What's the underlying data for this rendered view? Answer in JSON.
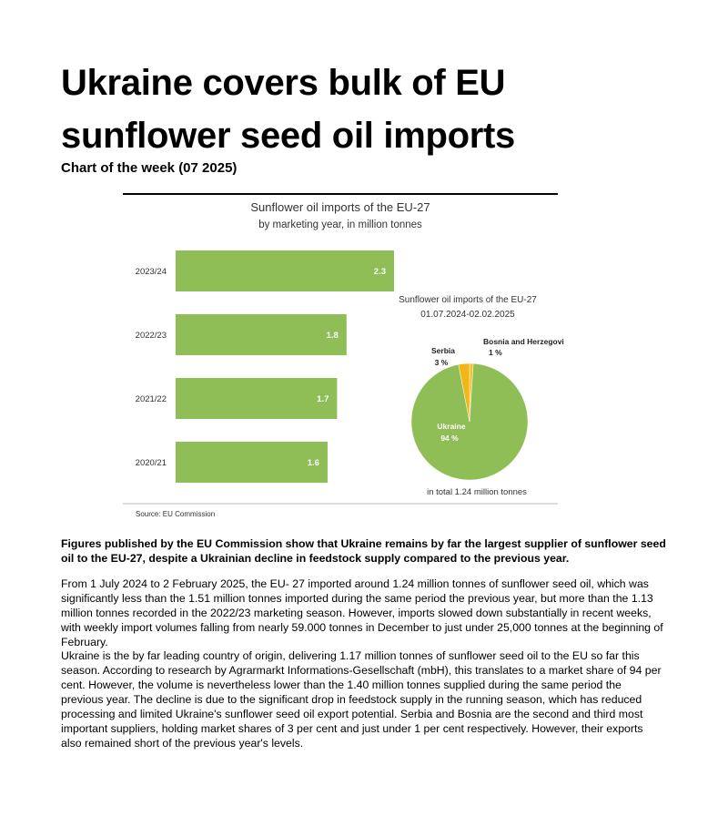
{
  "header": {
    "title": "Ukraine covers bulk of EU sunflower seed oil imports",
    "subtitle": "Chart of the week (07 2025)"
  },
  "chart": {
    "bar_title": "Sunflower oil imports of the EU-27",
    "bar_subtitle": "by marketing year, in million tonnes",
    "bars": {
      "type": "bar",
      "categories": [
        "2023/24",
        "2022/23",
        "2021/22",
        "2020/21"
      ],
      "values": [
        2.3,
        1.8,
        1.7,
        1.6
      ],
      "color": "#8fbe56"
    },
    "pie_title": "Sunflower oil imports of the EU-27",
    "pie_subtitle": "01.07.2024-02.02.2025",
    "pie": {
      "type": "pie",
      "categories": [
        "Bosnia and Herzegovina",
        "Ukraine",
        "Serbia"
      ],
      "values": [
        1,
        94,
        3
      ],
      "value_labels": [
        "1 %",
        "94 %",
        "3 %"
      ],
      "colors": [
        "#f2c12e",
        "#8fbe56",
        "#f2b617"
      ]
    },
    "pie_total": "in total 1.24 million tonnes",
    "source": "Source:  EU Commission"
  },
  "body": [
    "Figures published by the EU Commission show that Ukraine remains by far the largest supplier of sunflower seed oil to the EU-27, despite a Ukrainian decline in feedstock supply compared to the previous year.",
    "From 1 July 2024 to 2 February 2025, the EU- 27 imported around 1.24 million tonnes of sunflower seed oil, which was significantly less than the 1.51 million tonnes imported during the same period the previous year, but more than the 1.13 million tonnes recorded in the 2022/23 marketing season. However, imports slowed down substantially in recent weeks, with weekly import volumes falling from nearly 59.000 tonnes in December to just under 25,000 tonnes at the beginning of February.",
    "Ukraine is the by far leading country of origin, delivering 1.17 million tonnes of sunflower seed oil to the EU so far this season. According to research by Agrarmarkt Informations-Gesellschaft (mbH), this translates to a market share of 94 per cent. However, the volume is nevertheless lower than the 1.40 million tonnes supplied during the same period the previous year. The decline is due to the significant drop in feedstock supply in the running season, which has reduced processing and limited Ukraine's sunflower seed oil export potential. Serbia and Bosnia are the second and third most important suppliers, holding market shares of 3 per cent and just under 1 per cent respectively. However, their exports also remained short of the previous year's levels."
  ]
}
